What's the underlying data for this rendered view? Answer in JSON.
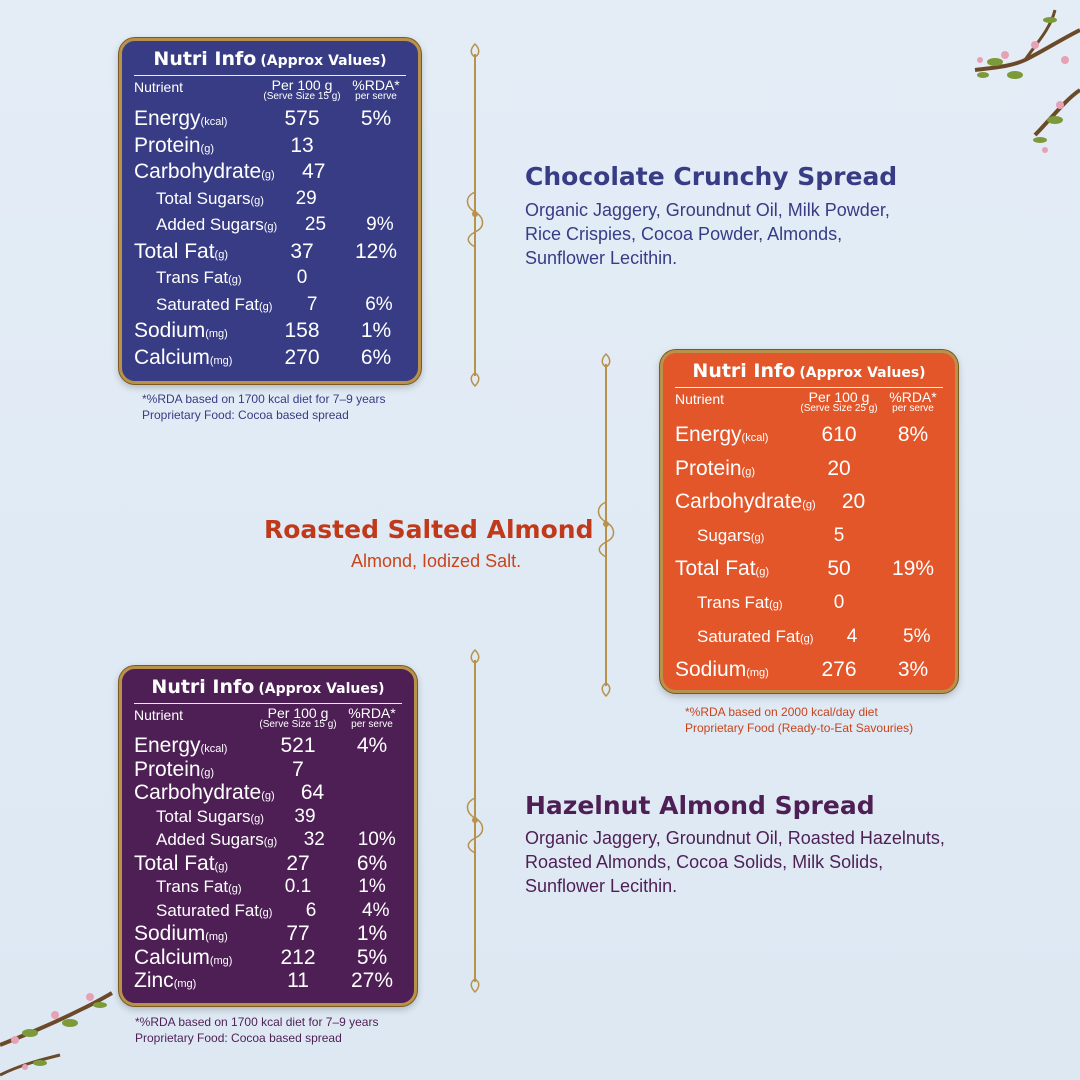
{
  "colors": {
    "choco": "#373c84",
    "roasted": "#e3562a",
    "hazel": "#4e1f55",
    "gold": "#b8914a"
  },
  "icons": [
    "branch-blossom-icon",
    "ornamental-divider-icon"
  ],
  "products": [
    {
      "name": "Chocolate Crunchy Spread",
      "ingredients": [
        "Organic Jaggery, Groundnut Oil, Milk Powder,",
        "Rice Crispies, Cocoa Powder, Almonds,",
        "Sunflower Lecithin."
      ],
      "panel": {
        "title": "Nutri Info",
        "subtitle": "(Approx Values)",
        "col_nutrient": "Nutrient",
        "col_per": "Per 100 g",
        "col_serve": "(Serve Size 15 g)",
        "col_rda": "%RDA*",
        "col_rda_sub": "per serve",
        "rows": [
          {
            "name": "Energy",
            "unit": "(kcal)",
            "value": "575",
            "rda": "5%",
            "level": "big"
          },
          {
            "name": "Protein",
            "unit": "(g)",
            "value": "13",
            "rda": "",
            "level": "big"
          },
          {
            "name": "Carbohydrate",
            "unit": "(g)",
            "value": "47",
            "rda": "",
            "level": "big"
          },
          {
            "name": "Total Sugars",
            "unit": "(g)",
            "value": "29",
            "rda": "",
            "level": "sm"
          },
          {
            "name": "Added Sugars",
            "unit": "(g)",
            "value": "25",
            "rda": "9%",
            "level": "sm"
          },
          {
            "name": "Total Fat",
            "unit": "(g)",
            "value": "37",
            "rda": "12%",
            "level": "big"
          },
          {
            "name": "Trans Fat",
            "unit": "(g)",
            "value": "0",
            "rda": "",
            "level": "sm"
          },
          {
            "name": "Saturated Fat",
            "unit": "(g)",
            "value": "7",
            "rda": "6%",
            "level": "sm"
          },
          {
            "name": "Sodium",
            "unit": "(mg)",
            "value": "158",
            "rda": "1%",
            "level": "big"
          },
          {
            "name": "Calcium",
            "unit": "(mg)",
            "value": "270",
            "rda": "6%",
            "level": "big"
          }
        ]
      },
      "notes": [
        "*%RDA based on 1700 kcal diet for 7–9 years",
        "Proprietary Food: Cocoa based spread"
      ]
    },
    {
      "name": "Roasted Salted Almond",
      "ingredients": [
        "Almond, Iodized Salt."
      ],
      "panel": {
        "title": "Nutri Info",
        "subtitle": "(Approx Values)",
        "col_nutrient": "Nutrient",
        "col_per": "Per 100 g",
        "col_serve": "(Serve Size 25 g)",
        "col_rda": "%RDA*",
        "col_rda_sub": "per serve",
        "rows": [
          {
            "name": "Energy",
            "unit": "(kcal)",
            "value": "610",
            "rda": "8%",
            "level": "big"
          },
          {
            "name": "Protein",
            "unit": "(g)",
            "value": "20",
            "rda": "",
            "level": "big"
          },
          {
            "name": "Carbohydrate",
            "unit": "(g)",
            "value": "20",
            "rda": "",
            "level": "big"
          },
          {
            "name": "Sugars",
            "unit": "(g)",
            "value": "5",
            "rda": "",
            "level": "sm"
          },
          {
            "name": "Total Fat",
            "unit": "(g)",
            "value": "50",
            "rda": "19%",
            "level": "big"
          },
          {
            "name": "Trans Fat",
            "unit": "(g)",
            "value": "0",
            "rda": "",
            "level": "sm"
          },
          {
            "name": "Saturated Fat",
            "unit": "(g)",
            "value": "4",
            "rda": "5%",
            "level": "sm"
          },
          {
            "name": "Sodium",
            "unit": "(mg)",
            "value": "276",
            "rda": "3%",
            "level": "big"
          }
        ]
      },
      "notes": [
        "*%RDA based on 2000 kcal/day diet",
        "Proprietary Food (Ready-to-Eat Savouries)"
      ]
    },
    {
      "name": "Hazelnut Almond Spread",
      "ingredients": [
        "Organic Jaggery, Groundnut Oil, Roasted Hazelnuts,",
        "Roasted Almonds, Cocoa Solids, Milk Solids,",
        "Sunflower Lecithin."
      ],
      "panel": {
        "title": "Nutri Info",
        "subtitle": "(Approx Values)",
        "col_nutrient": "Nutrient",
        "col_per": "Per 100 g",
        "col_serve": "(Serve Size 15 g)",
        "col_rda": "%RDA*",
        "col_rda_sub": "per serve",
        "rows": [
          {
            "name": "Energy",
            "unit": "(kcal)",
            "value": "521",
            "rda": "4%",
            "level": "big"
          },
          {
            "name": "Protein",
            "unit": "(g)",
            "value": "7",
            "rda": "",
            "level": "big"
          },
          {
            "name": "Carbohydrate",
            "unit": "(g)",
            "value": "64",
            "rda": "",
            "level": "big"
          },
          {
            "name": "Total Sugars",
            "unit": "(g)",
            "value": "39",
            "rda": "",
            "level": "sm"
          },
          {
            "name": "Added Sugars",
            "unit": "(g)",
            "value": "32",
            "rda": "10%",
            "level": "sm"
          },
          {
            "name": "Total Fat",
            "unit": "(g)",
            "value": "27",
            "rda": "6%",
            "level": "big"
          },
          {
            "name": "Trans Fat",
            "unit": "(g)",
            "value": "0.1",
            "rda": "1%",
            "level": "sm"
          },
          {
            "name": "Saturated Fat",
            "unit": "(g)",
            "value": "6",
            "rda": "4%",
            "level": "sm"
          },
          {
            "name": "Sodium",
            "unit": "(mg)",
            "value": "77",
            "rda": "1%",
            "level": "big"
          },
          {
            "name": "Calcium",
            "unit": "(mg)",
            "value": "212",
            "rda": "5%",
            "level": "big"
          },
          {
            "name": "Zinc",
            "unit": "(mg)",
            "value": "11",
            "rda": "27%",
            "level": "big"
          }
        ]
      },
      "notes": [
        "*%RDA based on 1700 kcal diet for 7–9 years",
        "Proprietary Food: Cocoa based spread"
      ]
    }
  ]
}
